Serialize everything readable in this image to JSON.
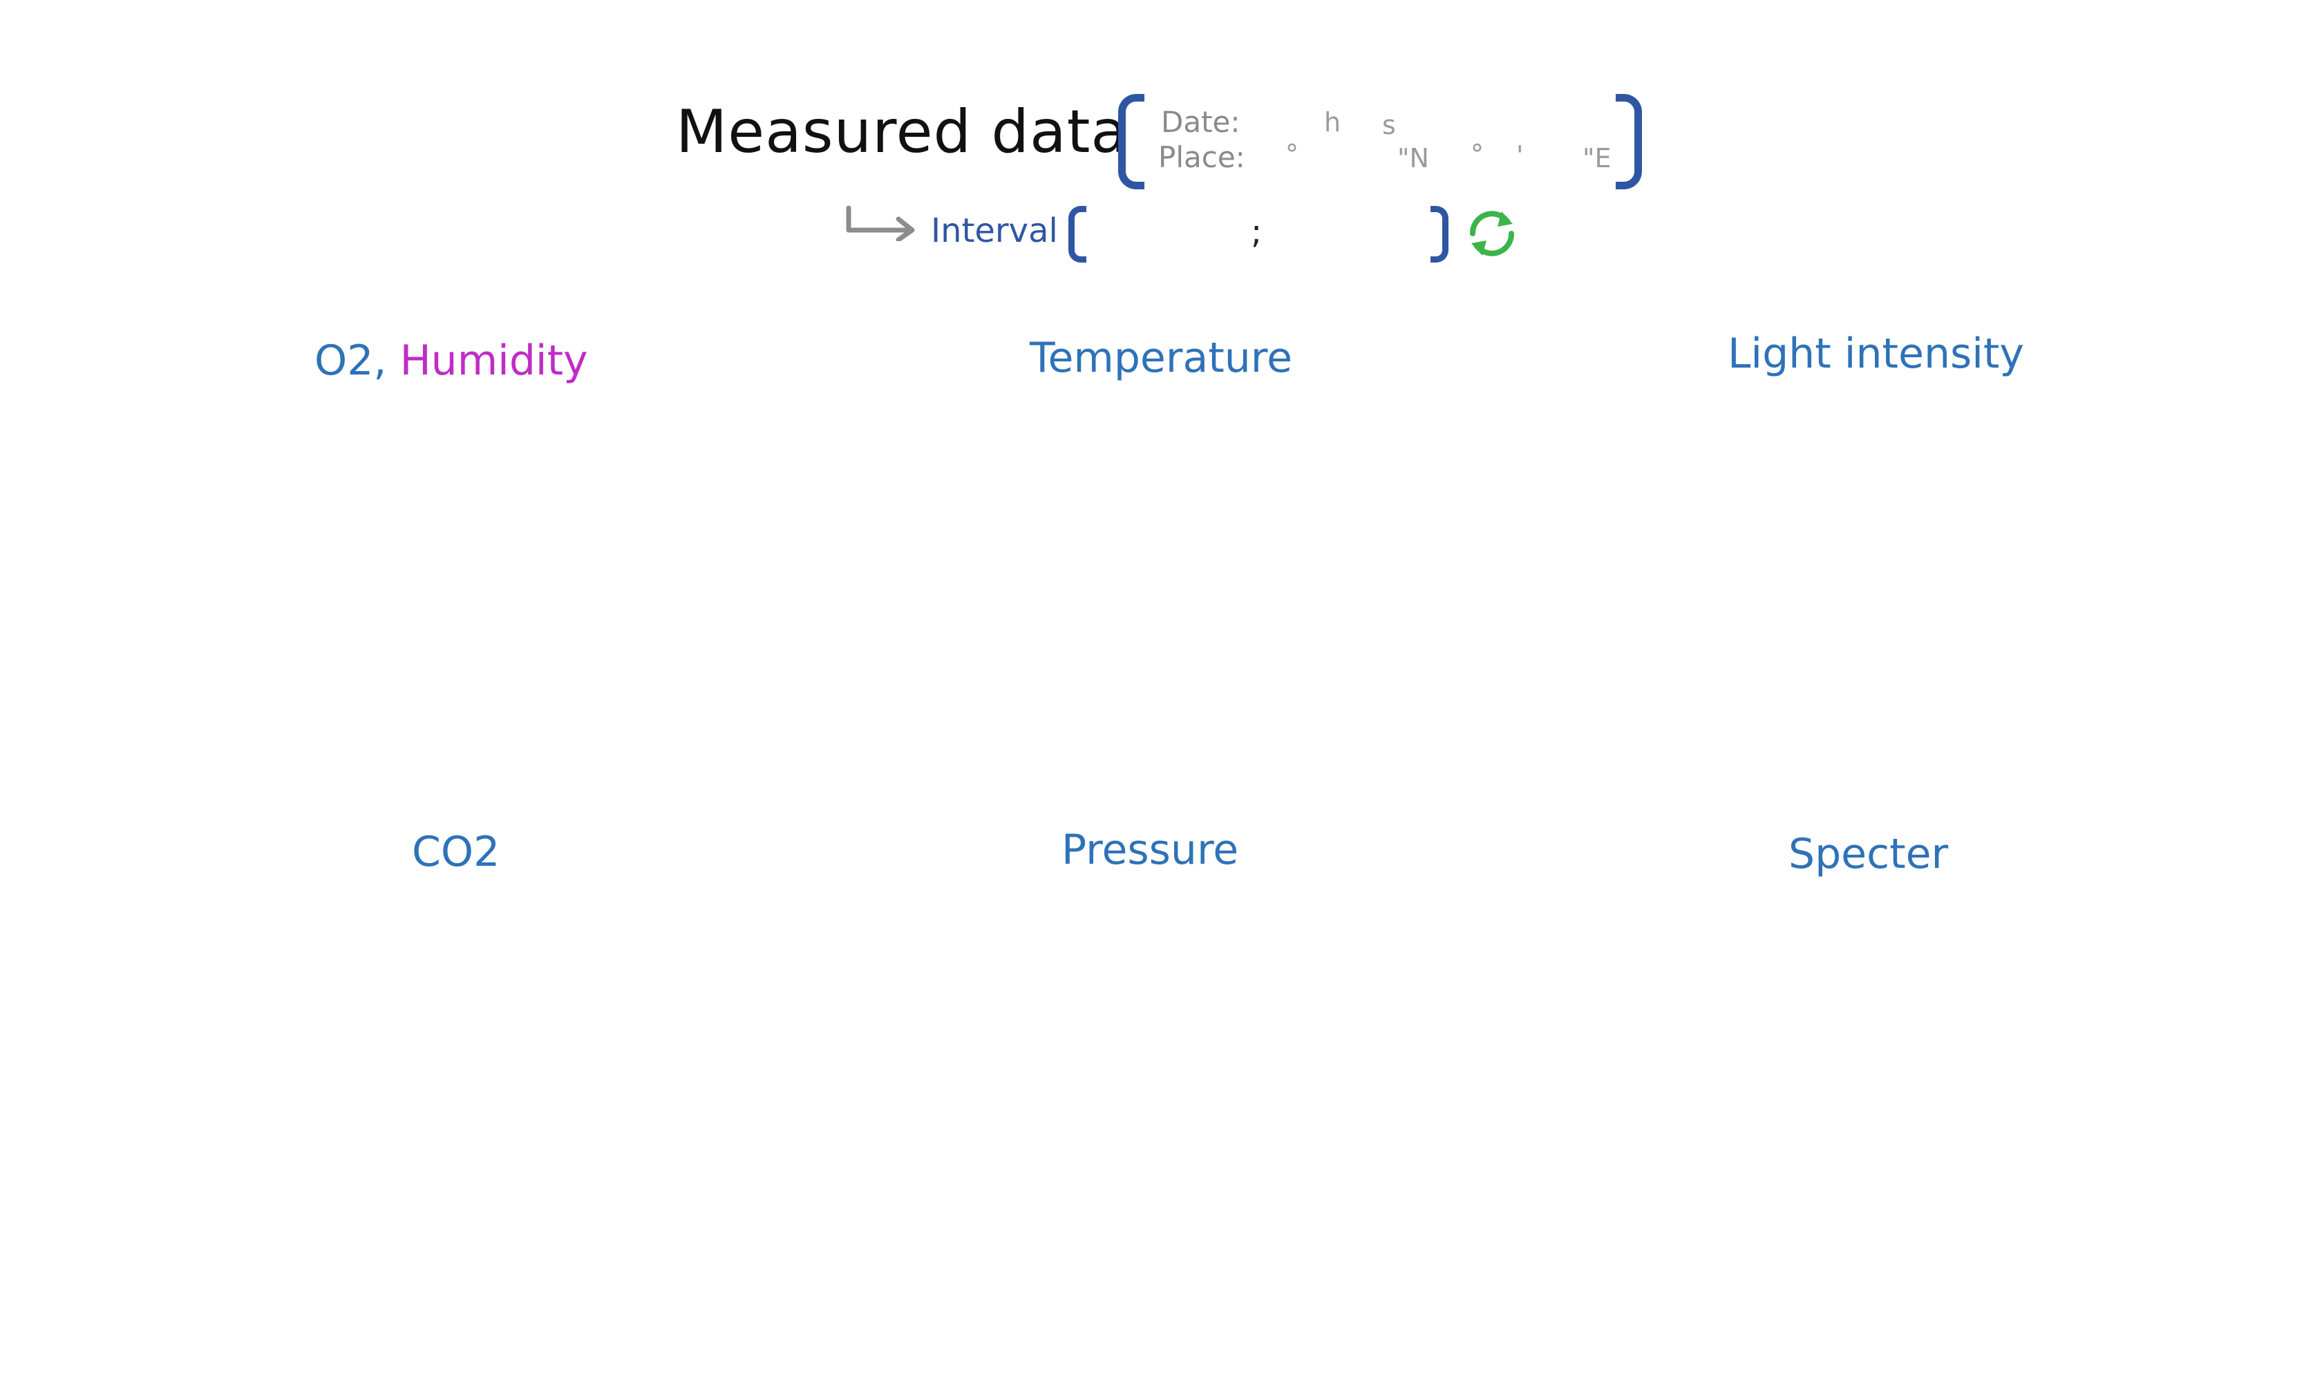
{
  "header": {
    "title": "Measured data",
    "date_label": "Date:",
    "date_hour_unit": "h",
    "date_second_unit": "s",
    "place_label": "Place:",
    "lat_deg_symbol": "°",
    "lat_suffix": "\"N",
    "lon_deg_symbol": "°",
    "lon_min_symbol": "'",
    "lon_suffix": "\"E"
  },
  "interval": {
    "label": "Interval",
    "separator": ";",
    "refresh_icon": "refresh-icon",
    "arrow_icon": "arrow-return-right-icon"
  },
  "panels": {
    "o2_label": "O2,",
    "humidity_label": "Humidity",
    "temperature_label": "Temperature",
    "light_label": "Light intensity",
    "co2_label": "CO2",
    "pressure_label": "Pressure",
    "specter_label": "Specter"
  },
  "colors": {
    "title": "#111111",
    "accent_blue": "#2f56a3",
    "panel_title_blue": "#2e72b8",
    "humidity_magenta": "#c02cc6",
    "refresh_green": "#3bb54a",
    "meta_gray": "#8a8a8a"
  }
}
